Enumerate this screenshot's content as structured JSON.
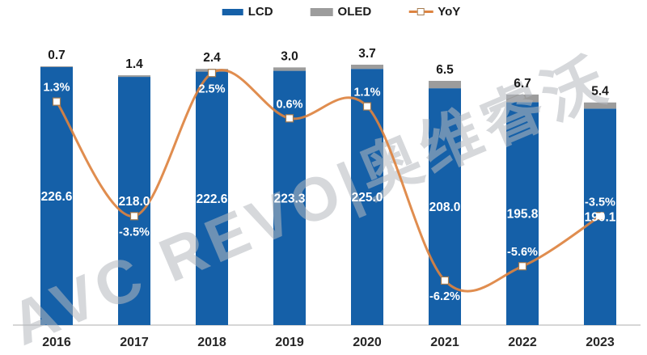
{
  "colors": {
    "lcd_blue": "#1560A8",
    "oled_gray": "#9C9C9C",
    "yoy_orange": "#DD8340",
    "marker_fill": "#FFFFFF",
    "marker_border": "#A57B4E",
    "value_label_white": "#FFFFFF",
    "value_label_black": "#1A1A1A",
    "axis_label_dark": "#262626",
    "axis_line_gray": "#C9C9C9",
    "watermark_gray": "#B5B9BF",
    "background": "#FFFFFF"
  },
  "legend": {
    "items": [
      {
        "label": "LCD",
        "swatch": "blue-bar"
      },
      {
        "label": "OLED",
        "swatch": "gray-bar"
      },
      {
        "label": "YoY",
        "swatch": "orange-line-with-marker"
      }
    ]
  },
  "watermark": {
    "text": "AVC REVO|奥维睿沃"
  },
  "chart_data": {
    "type": "bar",
    "subtype": "stacked-column-with-line",
    "title": "",
    "xlabel": "",
    "ylabel": "",
    "categories": [
      "2016",
      "2017",
      "2018",
      "2019",
      "2020",
      "2021",
      "2022",
      "2023"
    ],
    "stacked": true,
    "grid": false,
    "y_axis_visible": false,
    "legend_position": "top",
    "series": [
      {
        "name": "LCD",
        "type": "bar",
        "stack": "total",
        "values": [
          226.6,
          218.0,
          222.6,
          223.3,
          225.0,
          208.0,
          195.8,
          190.1
        ],
        "labels": [
          "226.6",
          "218.0",
          "222.6",
          "223.3",
          "225.0",
          "208.0",
          "195.8",
          "190.1"
        ]
      },
      {
        "name": "OLED",
        "type": "bar",
        "stack": "total",
        "values": [
          0.7,
          1.4,
          2.4,
          3.0,
          3.7,
          6.5,
          6.7,
          5.4
        ],
        "labels": [
          "0.7",
          "1.4",
          "2.4",
          "3.0",
          "3.7",
          "6.5",
          "6.7",
          "5.4"
        ]
      },
      {
        "name": "YoY",
        "type": "line",
        "axis": "secondary",
        "values_pct": [
          1.3,
          -3.5,
          2.5,
          0.6,
          1.1,
          -6.2,
          -5.6,
          -3.5
        ],
        "labels": [
          "1.3%",
          "-3.5%",
          "2.5%",
          "0.6%",
          "1.1%",
          "-6.2%",
          "-5.6%",
          "-3.5%"
        ],
        "label_position": [
          "above",
          "below",
          "below",
          "above",
          "above",
          "below",
          "above",
          "above"
        ]
      }
    ]
  }
}
